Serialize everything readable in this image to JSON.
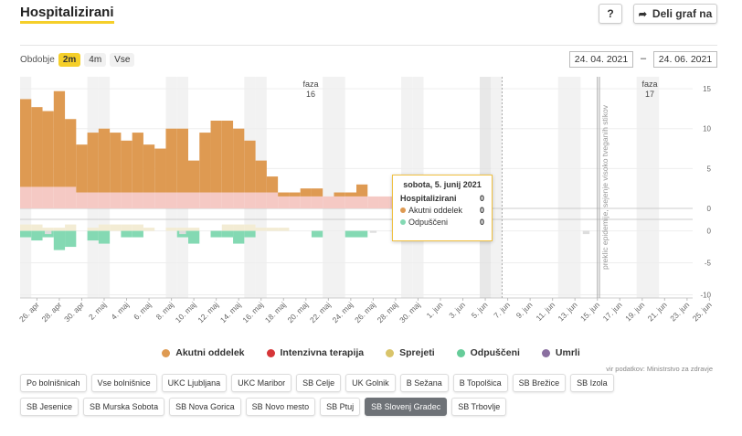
{
  "header": {
    "title": "Hospitalizirani",
    "help_label": "?",
    "share_label": "Deli graf na"
  },
  "period": {
    "label": "Obdobje",
    "options": [
      "2m",
      "4m",
      "Vse"
    ],
    "active": "2m",
    "date_from": "24. 04. 2021",
    "date_separator": "–",
    "date_to": "24. 06. 2021"
  },
  "tooltip": {
    "title": "sobota, 5. junij 2021",
    "rows": [
      {
        "label": "Hospitalizirani",
        "value": "0",
        "color": ""
      },
      {
        "label": "Akutni oddelek",
        "value": "0",
        "color": "#de9a52"
      },
      {
        "label": "Odpuščeni",
        "value": "0",
        "color": "#84d9b3"
      }
    ]
  },
  "legend": [
    {
      "label": "Akutni oddelek",
      "color": "#de9a52"
    },
    {
      "label": "Intenzivna terapija",
      "color": "#d63638"
    },
    {
      "label": "Sprejeti",
      "color": "#d9c46a"
    },
    {
      "label": "Odpuščeni",
      "color": "#66cc99"
    },
    {
      "label": "Umrli",
      "color": "#8a6fa0"
    }
  ],
  "source": "vir podatkov: Ministrstvo za zdravje",
  "hospitals": [
    {
      "label": "Po bolnišnicah",
      "active": false
    },
    {
      "label": "Vse bolnišnice",
      "active": false
    },
    {
      "label": "UKC Ljubljana",
      "active": false
    },
    {
      "label": "UKC Maribor",
      "active": false
    },
    {
      "label": "SB Celje",
      "active": false
    },
    {
      "label": "UK Golnik",
      "active": false
    },
    {
      "label": "B Sežana",
      "active": false
    },
    {
      "label": "B Topolšica",
      "active": false
    },
    {
      "label": "SB Brežice",
      "active": false
    },
    {
      "label": "SB Izola",
      "active": false
    },
    {
      "label": "SB Jesenice",
      "active": false
    },
    {
      "label": "SB Murska Sobota",
      "active": false
    },
    {
      "label": "SB Nova Gorica",
      "active": false
    },
    {
      "label": "SB Novo mesto",
      "active": false
    },
    {
      "label": "SB Ptuj",
      "active": false
    },
    {
      "label": "SB Slovenj Gradec",
      "active": true
    },
    {
      "label": "SB Trbovlje",
      "active": false
    }
  ],
  "chart_data": {
    "type": "bar",
    "x_labels": [
      "26. apr",
      "28. apr",
      "30. apr",
      "2. maj",
      "4. maj",
      "6. maj",
      "8. maj",
      "10. maj",
      "12. maj",
      "14. maj",
      "16. maj",
      "18. maj",
      "20. maj",
      "22. maj",
      "24. maj",
      "26. maj",
      "28. maj",
      "30. maj",
      "1. jun",
      "3. jun",
      "5. jun",
      "7. jun",
      "9. jun",
      "11. jun",
      "13. jun",
      "15. jun",
      "17. jun",
      "19. jun",
      "21. jun",
      "23. jun",
      "25. jun"
    ],
    "annotations": [
      {
        "label": "faza",
        "sublabel": "16"
      },
      {
        "label": "faza",
        "sublabel": "17"
      },
      {
        "label": "preklic epidemije, sejenje visoko tveganih stikov"
      }
    ],
    "top_panel": {
      "yticks": [
        0,
        5,
        10,
        15
      ],
      "ylim": [
        0,
        16.5
      ],
      "series": [
        {
          "name": "Akutni oddelek",
          "color": "#de9a52",
          "values": [
            11,
            10,
            9.5,
            12,
            8.5,
            6,
            7.5,
            8,
            7.5,
            6.5,
            7.5,
            6,
            5.5,
            8,
            8,
            4,
            7.5,
            9,
            9,
            8,
            6.5,
            4,
            2,
            0.5,
            0.5,
            1,
            1,
            0,
            0.5,
            0.5,
            1.5,
            0,
            0,
            0,
            0,
            0,
            0,
            0,
            0,
            0,
            0,
            0,
            0,
            0,
            0,
            0,
            0,
            0,
            0,
            0,
            0,
            0,
            0,
            0,
            0,
            0,
            0,
            0,
            0,
            0
          ]
        },
        {
          "name": "Intenzivna terapija",
          "color": "#f5c9c4",
          "values": [
            2.7,
            2.7,
            2.7,
            2.7,
            2.7,
            2,
            2,
            2,
            2,
            2,
            2,
            2,
            2,
            2,
            2,
            2,
            2,
            2,
            2,
            2,
            2,
            2,
            2,
            1.5,
            1.5,
            1.5,
            1.5,
            1.5,
            1.5,
            1.5,
            1.5,
            1.5,
            1.5,
            1.5,
            0,
            0,
            0,
            0,
            0,
            0,
            0,
            0,
            0,
            0,
            0,
            0,
            0,
            0,
            0,
            0,
            0,
            0,
            0,
            0,
            0,
            0,
            0,
            0,
            0,
            0
          ]
        }
      ]
    },
    "bottom_panel": {
      "yticks": [
        -10,
        -5,
        0
      ],
      "ylim": [
        -10.5,
        1.8
      ],
      "series": [
        {
          "name": "Sprejeti",
          "color": "#f3ecd4",
          "values": [
            1,
            1,
            0.5,
            0.5,
            1,
            0,
            0.5,
            1,
            1,
            1,
            1,
            0.5,
            0,
            0.5,
            0.5,
            0.5,
            0,
            0,
            1,
            1,
            1,
            0.5,
            0.5,
            0.5,
            0,
            0,
            0,
            0,
            0,
            0,
            0,
            0,
            0,
            0,
            0,
            0,
            0,
            0,
            0,
            0,
            0,
            0,
            0,
            0,
            0,
            0,
            0,
            0,
            0,
            0,
            0,
            0,
            0,
            0,
            0,
            0,
            0,
            0,
            0,
            0
          ]
        },
        {
          "name": "Odpuščeni",
          "color": "#84d9b3",
          "values": [
            -1,
            -1.5,
            -1,
            -3,
            -2.5,
            0,
            -1.5,
            -2,
            0,
            -1,
            -1,
            0,
            0,
            0,
            -1,
            -2,
            0,
            -1,
            -1,
            -2,
            -1,
            0,
            0,
            0,
            0,
            0,
            -1,
            0,
            0,
            -1,
            -1,
            0,
            0,
            0,
            0,
            0,
            0,
            0,
            0,
            0,
            0,
            0,
            0,
            0,
            0,
            0,
            0,
            0,
            0,
            0,
            0,
            0,
            0,
            0,
            0,
            0,
            0,
            0,
            0,
            0
          ]
        },
        {
          "name": "Umrli",
          "color": "#dddddd",
          "values": [
            0,
            0,
            -0.5,
            0,
            0,
            0,
            0,
            0,
            0,
            0,
            0,
            0,
            0,
            0,
            -0.5,
            0,
            0,
            0,
            0,
            0,
            0,
            0,
            0,
            0,
            0,
            0,
            0,
            0,
            0,
            0,
            0,
            -0.3,
            0,
            0,
            0,
            0,
            0,
            0,
            0,
            0,
            0,
            0,
            0,
            0,
            0,
            0,
            0,
            0,
            0,
            0,
            -0.5,
            0,
            0,
            0,
            0,
            0,
            0,
            0,
            0,
            0
          ]
        }
      ]
    }
  }
}
